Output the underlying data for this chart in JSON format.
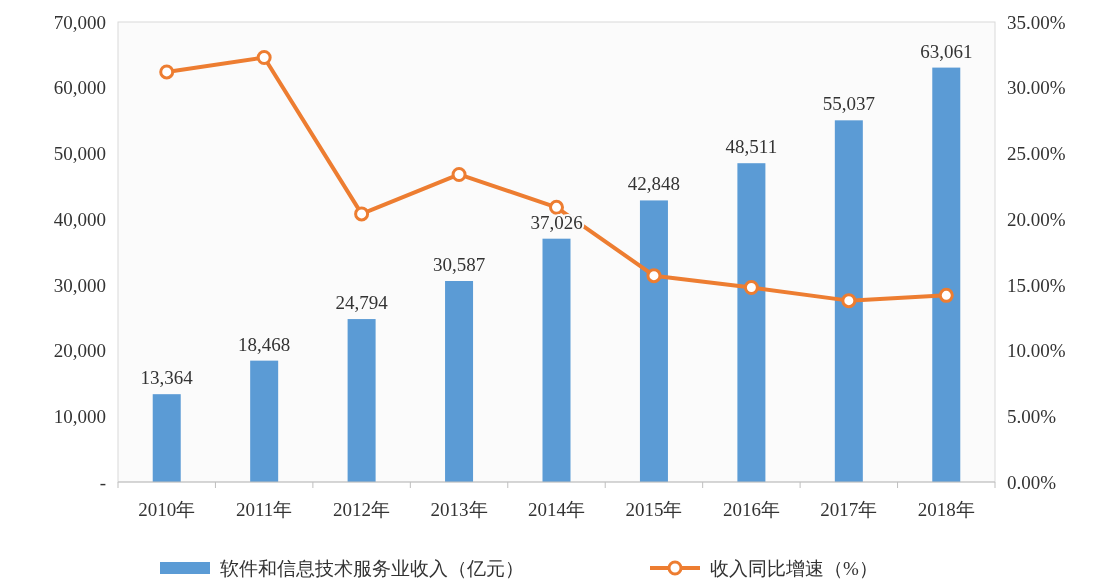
{
  "chart_data": {
    "type": "bar",
    "categories": [
      "2010年",
      "2011年",
      "2012年",
      "2013年",
      "2014年",
      "2015年",
      "2016年",
      "2017年",
      "2018年"
    ],
    "series": [
      {
        "name": "软件和信息技术服务业收入（亿元）",
        "color": "#5b9bd5",
        "values": [
          13364,
          18468,
          24794,
          30587,
          37026,
          42848,
          48511,
          55037,
          63061
        ],
        "value_labels": [
          "13,364",
          "18,468",
          "24,794",
          "30,587",
          "37,026",
          "42,848",
          "48,511",
          "55,037",
          "63,061"
        ]
      },
      {
        "name": "收入同比增速（%）",
        "type": "line",
        "axis": "y2",
        "color": "#ed7d31",
        "marker": "circle",
        "values": [
          31.2,
          32.3,
          20.4,
          23.4,
          20.9,
          15.7,
          14.8,
          13.8,
          14.2
        ]
      }
    ],
    "ylim": [
      0,
      70000
    ],
    "yticks": [
      {
        "value": 0,
        "label": "-"
      },
      {
        "value": 10000,
        "label": "10,000"
      },
      {
        "value": 20000,
        "label": "20,000"
      },
      {
        "value": 30000,
        "label": "30,000"
      },
      {
        "value": 40000,
        "label": "40,000"
      },
      {
        "value": 50000,
        "label": "50,000"
      },
      {
        "value": 60000,
        "label": "60,000"
      },
      {
        "value": 70000,
        "label": "70,000"
      }
    ],
    "y2lim": [
      0,
      35
    ],
    "y2ticks": [
      {
        "value": 0,
        "label": "0.00%"
      },
      {
        "value": 5,
        "label": "5.00%"
      },
      {
        "value": 10,
        "label": "10.00%"
      },
      {
        "value": 15,
        "label": "15.00%"
      },
      {
        "value": 20,
        "label": "20.00%"
      },
      {
        "value": 25,
        "label": "25.00%"
      },
      {
        "value": 30,
        "label": "30.00%"
      },
      {
        "value": 35,
        "label": "35.00%"
      }
    ],
    "legend": "bottom"
  }
}
